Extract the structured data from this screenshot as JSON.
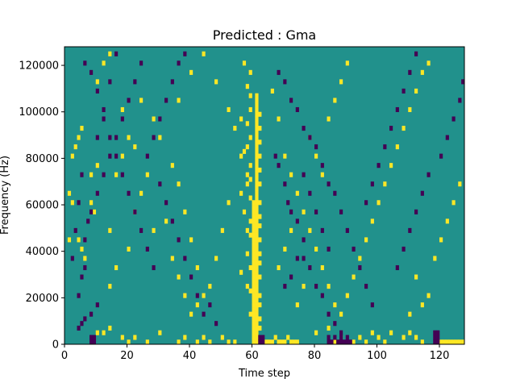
{
  "chart_data": {
    "type": "heatmap",
    "title": "Predicted : Gma",
    "xlabel": "Time step",
    "ylabel": "Frequency (Hz)",
    "xlim": [
      0,
      128
    ],
    "ylim": [
      0,
      128000
    ],
    "x_ticks": [
      0,
      20,
      40,
      60,
      80,
      100,
      120
    ],
    "y_ticks": [
      0,
      20000,
      40000,
      60000,
      80000,
      100000,
      120000
    ],
    "n_time_steps": 128,
    "n_freq_bins": 64,
    "value_levels": [
      -1,
      0,
      1
    ],
    "colors": {
      "low": "#440154",
      "mid": "#21918c",
      "high": "#fde725"
    },
    "grid": false,
    "legend": "none",
    "cells_high": [
      [
        60,
        0
      ],
      [
        60,
        1
      ],
      [
        60,
        2
      ],
      [
        60,
        3
      ],
      [
        60,
        4
      ],
      [
        60,
        5
      ],
      [
        60,
        6
      ],
      [
        60,
        7
      ],
      [
        60,
        8
      ],
      [
        60,
        9
      ],
      [
        60,
        10
      ],
      [
        60,
        11
      ],
      [
        60,
        12
      ],
      [
        60,
        13
      ],
      [
        60,
        14
      ],
      [
        60,
        15
      ],
      [
        60,
        16
      ],
      [
        60,
        17
      ],
      [
        60,
        18
      ],
      [
        60,
        19
      ],
      [
        60,
        20
      ],
      [
        60,
        21
      ],
      [
        60,
        22
      ],
      [
        60,
        23
      ],
      [
        60,
        24
      ],
      [
        60,
        25
      ],
      [
        60,
        26
      ],
      [
        60,
        27
      ],
      [
        60,
        28
      ],
      [
        60,
        29
      ],
      [
        60,
        30
      ],
      [
        61,
        0
      ],
      [
        61,
        1
      ],
      [
        61,
        2
      ],
      [
        61,
        3
      ],
      [
        61,
        4
      ],
      [
        61,
        5
      ],
      [
        61,
        6
      ],
      [
        61,
        7
      ],
      [
        61,
        8
      ],
      [
        61,
        9
      ],
      [
        61,
        10
      ],
      [
        61,
        11
      ],
      [
        61,
        12
      ],
      [
        61,
        13
      ],
      [
        61,
        14
      ],
      [
        61,
        15
      ],
      [
        61,
        16
      ],
      [
        61,
        17
      ],
      [
        61,
        18
      ],
      [
        61,
        19
      ],
      [
        61,
        20
      ],
      [
        61,
        21
      ],
      [
        61,
        22
      ],
      [
        61,
        23
      ],
      [
        61,
        24
      ],
      [
        61,
        25
      ],
      [
        61,
        26
      ],
      [
        61,
        27
      ],
      [
        61,
        28
      ],
      [
        61,
        29
      ],
      [
        61,
        30
      ],
      [
        61,
        31
      ],
      [
        61,
        32
      ],
      [
        61,
        33
      ],
      [
        61,
        34
      ],
      [
        61,
        35
      ],
      [
        61,
        36
      ],
      [
        61,
        37
      ],
      [
        61,
        38
      ],
      [
        61,
        39
      ],
      [
        61,
        40
      ],
      [
        61,
        41
      ],
      [
        61,
        42
      ],
      [
        61,
        43
      ],
      [
        61,
        44
      ],
      [
        61,
        45
      ],
      [
        61,
        46
      ],
      [
        61,
        47
      ],
      [
        61,
        48
      ],
      [
        61,
        49
      ],
      [
        61,
        50
      ],
      [
        61,
        51
      ],
      [
        61,
        52
      ],
      [
        61,
        53
      ],
      [
        62,
        3
      ],
      [
        62,
        5
      ],
      [
        62,
        8
      ],
      [
        62,
        10
      ],
      [
        62,
        14
      ],
      [
        62,
        17
      ],
      [
        62,
        19
      ],
      [
        62,
        22
      ],
      [
        62,
        25
      ],
      [
        62,
        27
      ],
      [
        62,
        30
      ],
      [
        62,
        34
      ],
      [
        62,
        37
      ],
      [
        62,
        40
      ],
      [
        62,
        43
      ],
      [
        62,
        46
      ],
      [
        62,
        49
      ],
      [
        59,
        6
      ],
      [
        59,
        11
      ],
      [
        59,
        16
      ],
      [
        59,
        23
      ],
      [
        59,
        26
      ],
      [
        59,
        31
      ],
      [
        59,
        35
      ],
      [
        59,
        38
      ],
      [
        59,
        44
      ],
      [
        59,
        50
      ],
      [
        59,
        53
      ],
      [
        59,
        58
      ],
      [
        58,
        12
      ],
      [
        58,
        19
      ],
      [
        58,
        24
      ],
      [
        58,
        36
      ],
      [
        58,
        42
      ],
      [
        58,
        47
      ],
      [
        58,
        55
      ],
      [
        57,
        28
      ],
      [
        57,
        41
      ],
      [
        57,
        60
      ],
      [
        56,
        15
      ],
      [
        56,
        32
      ],
      [
        56,
        48
      ],
      [
        64,
        0
      ],
      [
        65,
        0
      ],
      [
        66,
        0
      ],
      [
        67,
        1
      ],
      [
        68,
        0
      ],
      [
        69,
        0
      ],
      [
        70,
        0
      ],
      [
        71,
        1
      ],
      [
        72,
        0
      ],
      [
        73,
        0
      ],
      [
        74,
        0
      ],
      [
        120,
        0
      ],
      [
        121,
        0
      ],
      [
        122,
        0
      ],
      [
        123,
        0
      ],
      [
        124,
        0
      ],
      [
        125,
        0
      ],
      [
        126,
        0
      ],
      [
        127,
        0
      ],
      [
        10,
        2
      ],
      [
        12,
        2
      ],
      [
        14,
        3
      ],
      [
        18,
        1
      ],
      [
        20,
        0
      ],
      [
        22,
        1
      ],
      [
        26,
        0
      ],
      [
        30,
        2
      ],
      [
        36,
        0
      ],
      [
        38,
        1
      ],
      [
        42,
        0
      ],
      [
        44,
        1
      ],
      [
        46,
        0
      ],
      [
        50,
        1
      ],
      [
        52,
        0
      ],
      [
        54,
        0
      ],
      [
        80,
        2
      ],
      [
        84,
        3
      ],
      [
        86,
        0
      ],
      [
        88,
        1
      ],
      [
        92,
        0
      ],
      [
        94,
        1
      ],
      [
        96,
        0
      ],
      [
        98,
        2
      ],
      [
        100,
        1
      ],
      [
        102,
        0
      ],
      [
        104,
        2
      ],
      [
        108,
        1
      ],
      [
        110,
        2
      ],
      [
        112,
        1
      ],
      [
        114,
        0
      ],
      [
        4,
        22
      ],
      [
        5,
        20
      ],
      [
        6,
        18
      ],
      [
        8,
        30
      ],
      [
        9,
        28
      ],
      [
        14,
        12
      ],
      [
        16,
        36
      ],
      [
        18,
        40
      ],
      [
        20,
        44
      ],
      [
        24,
        52
      ],
      [
        28,
        48
      ],
      [
        30,
        44
      ],
      [
        34,
        38
      ],
      [
        36,
        34
      ],
      [
        38,
        28
      ],
      [
        40,
        22
      ],
      [
        42,
        16
      ],
      [
        44,
        10
      ],
      [
        46,
        12
      ],
      [
        48,
        18
      ],
      [
        50,
        24
      ],
      [
        52,
        30
      ],
      [
        4,
        44
      ],
      [
        5,
        46
      ],
      [
        10,
        56
      ],
      [
        12,
        60
      ],
      [
        14,
        62
      ],
      [
        18,
        50
      ],
      [
        22,
        42
      ],
      [
        26,
        36
      ],
      [
        32,
        26
      ],
      [
        34,
        18
      ],
      [
        36,
        14
      ],
      [
        38,
        10
      ],
      [
        40,
        6
      ],
      [
        42,
        8
      ],
      [
        66,
        54
      ],
      [
        68,
        48
      ],
      [
        70,
        40
      ],
      [
        72,
        36
      ],
      [
        74,
        32
      ],
      [
        76,
        28
      ],
      [
        78,
        24
      ],
      [
        80,
        20
      ],
      [
        82,
        16
      ],
      [
        84,
        12
      ],
      [
        86,
        8
      ],
      [
        88,
        6
      ],
      [
        90,
        10
      ],
      [
        92,
        14
      ],
      [
        94,
        18
      ],
      [
        96,
        22
      ],
      [
        98,
        26
      ],
      [
        100,
        30
      ],
      [
        102,
        34
      ],
      [
        104,
        38
      ],
      [
        106,
        42
      ],
      [
        108,
        46
      ],
      [
        110,
        50
      ],
      [
        112,
        54
      ],
      [
        114,
        58
      ],
      [
        116,
        60
      ],
      [
        68,
        16
      ],
      [
        70,
        20
      ],
      [
        72,
        24
      ],
      [
        74,
        8
      ],
      [
        76,
        12
      ],
      [
        78,
        44
      ],
      [
        80,
        40
      ],
      [
        82,
        36
      ],
      [
        84,
        48
      ],
      [
        86,
        52
      ],
      [
        88,
        56
      ],
      [
        90,
        60
      ],
      [
        118,
        18
      ],
      [
        120,
        22
      ],
      [
        122,
        26
      ],
      [
        124,
        30
      ],
      [
        126,
        34
      ],
      [
        116,
        10
      ],
      [
        114,
        8
      ],
      [
        112,
        14
      ],
      [
        110,
        6
      ],
      [
        36,
        52
      ],
      [
        40,
        58
      ],
      [
        44,
        62
      ],
      [
        48,
        56
      ],
      [
        52,
        50
      ],
      [
        54,
        46
      ],
      [
        56,
        40
      ],
      [
        58,
        34
      ],
      [
        1,
        22
      ],
      [
        1,
        32
      ],
      [
        2,
        30
      ],
      [
        2,
        40
      ],
      [
        3,
        42
      ],
      [
        8,
        36
      ],
      [
        10,
        38
      ],
      [
        14,
        24
      ],
      [
        16,
        16
      ],
      [
        20,
        20
      ],
      [
        22,
        28
      ],
      [
        24,
        32
      ],
      [
        28,
        24
      ]
    ],
    "cells_low": [
      [
        62,
        0
      ],
      [
        63,
        0
      ],
      [
        62,
        1
      ],
      [
        63,
        1
      ],
      [
        84,
        0
      ],
      [
        85,
        0
      ],
      [
        86,
        1
      ],
      [
        87,
        0
      ],
      [
        88,
        0
      ],
      [
        89,
        0
      ],
      [
        90,
        0
      ],
      [
        91,
        0
      ],
      [
        84,
        1
      ],
      [
        88,
        1
      ],
      [
        90,
        1
      ],
      [
        118,
        0
      ],
      [
        119,
        0
      ],
      [
        118,
        1
      ],
      [
        119,
        1
      ],
      [
        118,
        2
      ],
      [
        119,
        2
      ],
      [
        8,
        0
      ],
      [
        9,
        0
      ],
      [
        8,
        1
      ],
      [
        9,
        1
      ],
      [
        4,
        3
      ],
      [
        5,
        4
      ],
      [
        6,
        5
      ],
      [
        8,
        6
      ],
      [
        10,
        8
      ],
      [
        67,
        40
      ],
      [
        68,
        38
      ],
      [
        70,
        34
      ],
      [
        71,
        30
      ],
      [
        72,
        28
      ],
      [
        74,
        26
      ],
      [
        76,
        22
      ],
      [
        76,
        18
      ],
      [
        78,
        16
      ],
      [
        80,
        12
      ],
      [
        82,
        10
      ],
      [
        84,
        6
      ],
      [
        86,
        4
      ],
      [
        88,
        2
      ],
      [
        68,
        58
      ],
      [
        70,
        56
      ],
      [
        72,
        52
      ],
      [
        74,
        50
      ],
      [
        76,
        46
      ],
      [
        78,
        44
      ],
      [
        80,
        42
      ],
      [
        82,
        38
      ],
      [
        84,
        34
      ],
      [
        86,
        32
      ],
      [
        88,
        28
      ],
      [
        90,
        24
      ],
      [
        92,
        20
      ],
      [
        94,
        16
      ],
      [
        96,
        12
      ],
      [
        98,
        8
      ],
      [
        70,
        12
      ],
      [
        72,
        14
      ],
      [
        74,
        18
      ],
      [
        76,
        36
      ],
      [
        78,
        32
      ],
      [
        80,
        28
      ],
      [
        82,
        24
      ],
      [
        84,
        20
      ],
      [
        4,
        10
      ],
      [
        5,
        14
      ],
      [
        6,
        16
      ],
      [
        6,
        22
      ],
      [
        7,
        26
      ],
      [
        8,
        28
      ],
      [
        10,
        32
      ],
      [
        12,
        36
      ],
      [
        14,
        40
      ],
      [
        16,
        44
      ],
      [
        18,
        48
      ],
      [
        20,
        52
      ],
      [
        22,
        56
      ],
      [
        24,
        60
      ],
      [
        30,
        34
      ],
      [
        32,
        30
      ],
      [
        34,
        26
      ],
      [
        36,
        22
      ],
      [
        38,
        18
      ],
      [
        40,
        14
      ],
      [
        42,
        10
      ],
      [
        44,
        6
      ],
      [
        46,
        8
      ],
      [
        48,
        4
      ],
      [
        96,
        30
      ],
      [
        98,
        34
      ],
      [
        100,
        38
      ],
      [
        102,
        42
      ],
      [
        104,
        46
      ],
      [
        106,
        50
      ],
      [
        108,
        54
      ],
      [
        110,
        58
      ],
      [
        112,
        62
      ],
      [
        6,
        60
      ],
      [
        8,
        58
      ],
      [
        10,
        54
      ],
      [
        12,
        48
      ],
      [
        14,
        44
      ],
      [
        16,
        40
      ],
      [
        18,
        36
      ],
      [
        20,
        32
      ],
      [
        22,
        28
      ],
      [
        24,
        24
      ],
      [
        26,
        20
      ],
      [
        28,
        16
      ],
      [
        26,
        40
      ],
      [
        28,
        44
      ],
      [
        30,
        48
      ],
      [
        32,
        52
      ],
      [
        34,
        56
      ],
      [
        36,
        60
      ],
      [
        38,
        62
      ],
      [
        120,
        40
      ],
      [
        122,
        44
      ],
      [
        124,
        48
      ],
      [
        126,
        52
      ],
      [
        127,
        56
      ],
      [
        116,
        36
      ],
      [
        114,
        32
      ],
      [
        112,
        28
      ],
      [
        110,
        24
      ],
      [
        108,
        20
      ],
      [
        106,
        16
      ],
      [
        2,
        18
      ],
      [
        3,
        24
      ],
      [
        4,
        30
      ],
      [
        5,
        36
      ],
      [
        10,
        44
      ],
      [
        12,
        50
      ],
      [
        14,
        56
      ],
      [
        16,
        62
      ]
    ]
  }
}
